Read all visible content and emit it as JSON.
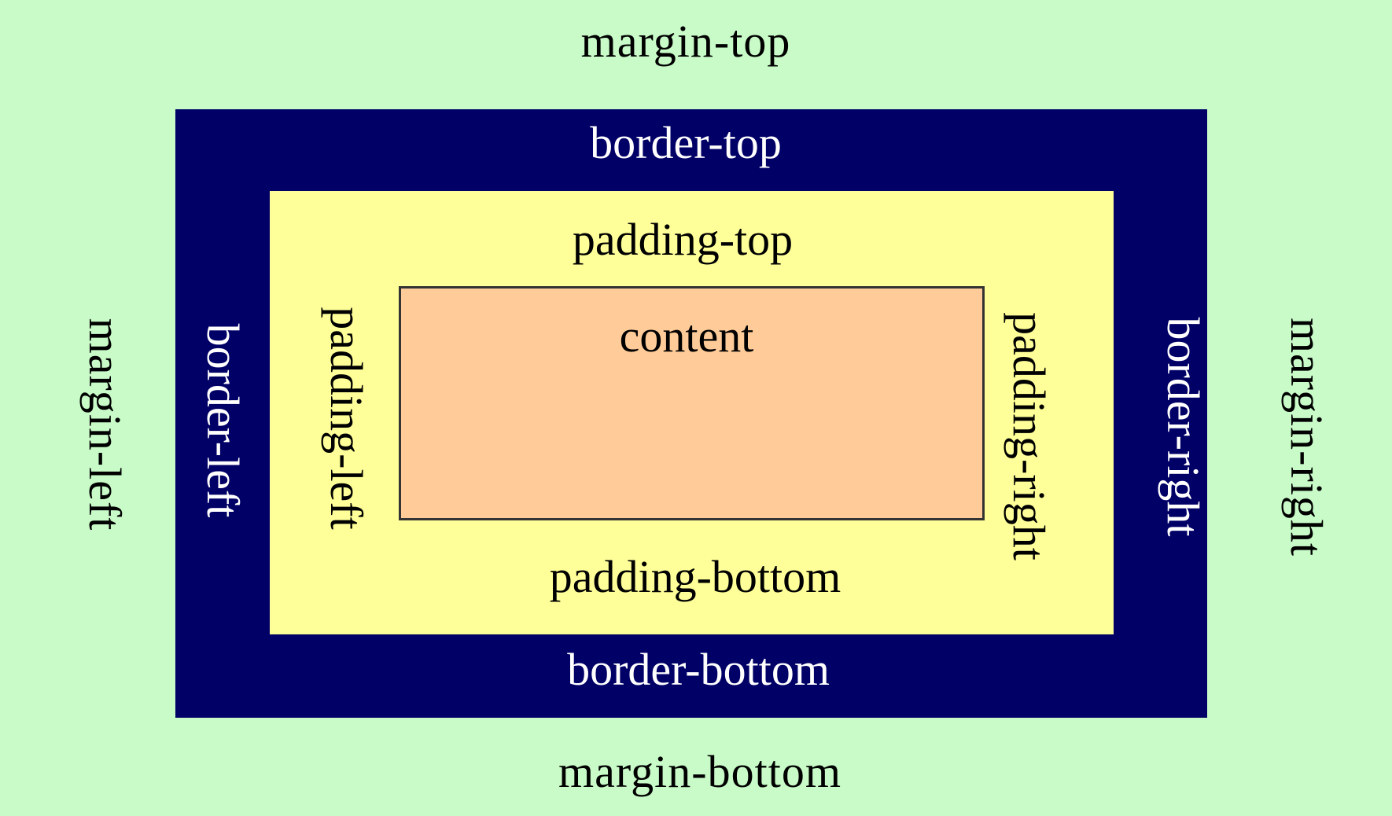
{
  "labels": {
    "margin_top": "margin-top",
    "margin_bottom": "margin-bottom",
    "margin_left": "margin-left",
    "margin_right": "margin-right",
    "border_top": "border-top",
    "border_bottom": "border-bottom",
    "border_left": "border-left",
    "border_right": "border-right",
    "padding_top": "padding-top",
    "padding_bottom": "padding-bottom",
    "padding_left": "padding-left",
    "padding_right": "padding-right",
    "content": "content"
  },
  "colors": {
    "margin": "#c8fbc8",
    "border": "#000066",
    "padding": "#ffff99",
    "content": "#ffcc99"
  }
}
